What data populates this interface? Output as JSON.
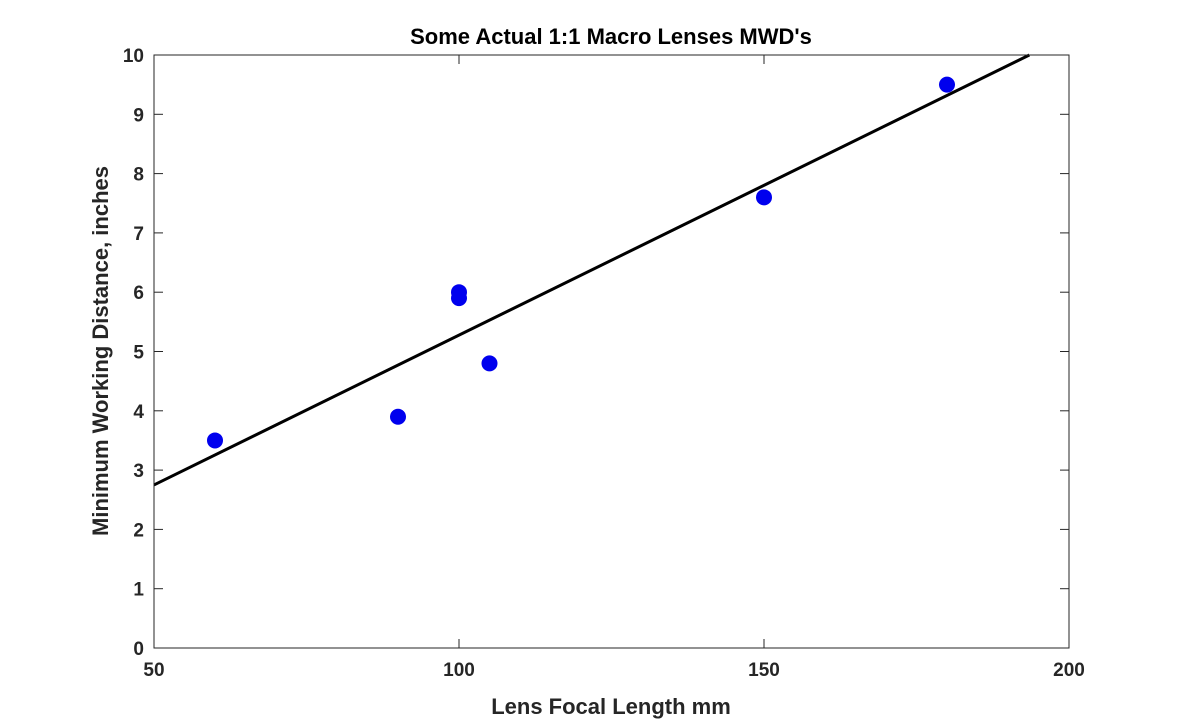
{
  "chart_data": {
    "type": "scatter",
    "title": "Some Actual 1:1 Macro Lenses MWD's",
    "xlabel": "Lens Focal Length mm",
    "ylabel": "Minimum Working Distance, inches",
    "xlim": [
      50,
      200
    ],
    "ylim": [
      0,
      10
    ],
    "xticks": [
      "50",
      "100",
      "150",
      "200"
    ],
    "yticks": [
      "0",
      "1",
      "2",
      "3",
      "4",
      "5",
      "6",
      "7",
      "8",
      "9",
      "10"
    ],
    "grid": false,
    "points": [
      {
        "x": 60,
        "y": 3.5
      },
      {
        "x": 90,
        "y": 3.9
      },
      {
        "x": 100,
        "y": 6.0
      },
      {
        "x": 100,
        "y": 5.9
      },
      {
        "x": 105,
        "y": 4.8
      },
      {
        "x": 150,
        "y": 7.6
      },
      {
        "x": 180,
        "y": 9.5
      }
    ],
    "fit_line": {
      "x": [
        50,
        193.5
      ],
      "y": [
        2.75,
        10.0
      ]
    },
    "colors": {
      "points": "#0000ee",
      "line": "#000000",
      "axes": "#262626"
    }
  }
}
